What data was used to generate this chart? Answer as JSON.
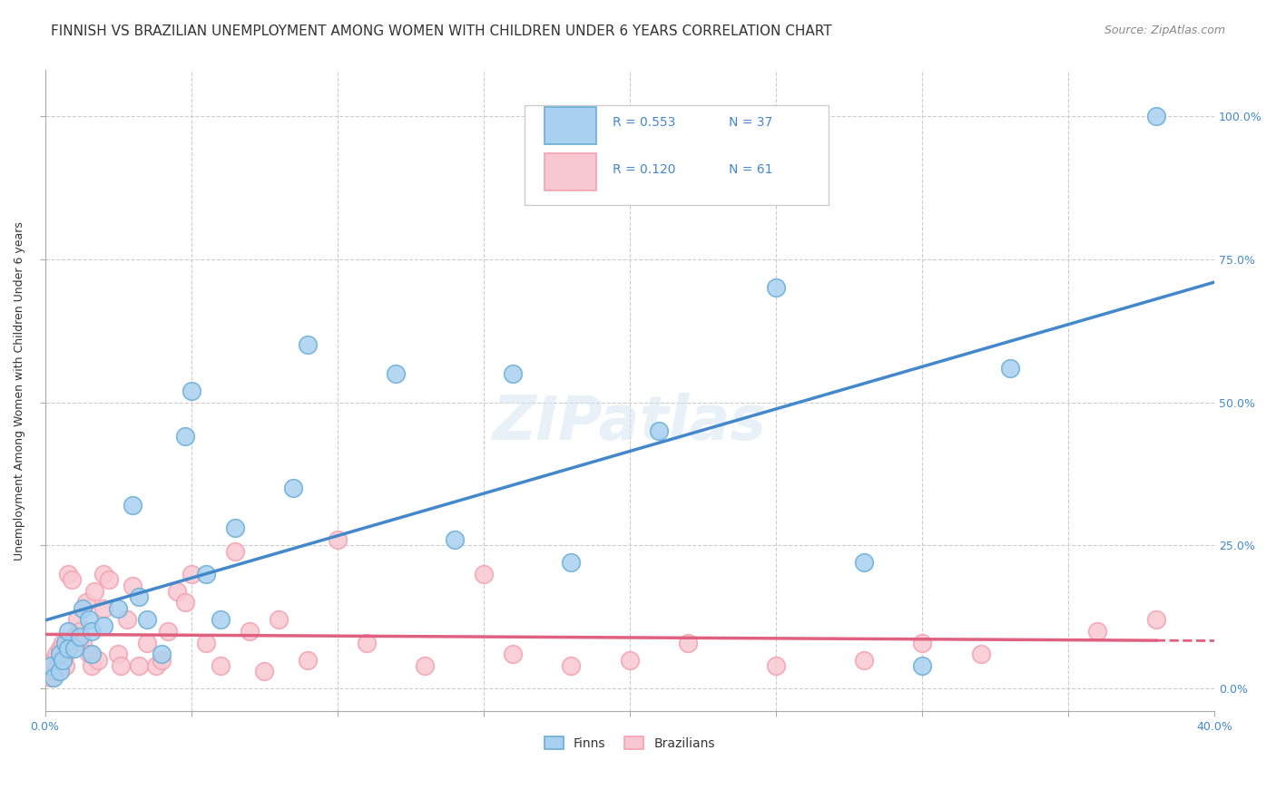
{
  "title": "FINNISH VS BRAZILIAN UNEMPLOYMENT AMONG WOMEN WITH CHILDREN UNDER 6 YEARS CORRELATION CHART",
  "source": "Source: ZipAtlas.com",
  "ylabel": "Unemployment Among Women with Children Under 6 years",
  "ytick_labels": [
    "0.0%",
    "25.0%",
    "50.0%",
    "75.0%",
    "100.0%"
  ],
  "ytick_values": [
    0,
    0.25,
    0.5,
    0.75,
    1.0
  ],
  "xlim": [
    0,
    0.4
  ],
  "ylim": [
    -0.04,
    1.08
  ],
  "legend_finn_R": "0.553",
  "legend_finn_N": "37",
  "legend_braz_R": "0.120",
  "legend_braz_N": "61",
  "finn_color": "#6baed6",
  "finn_color_fill": "#a8d1f0",
  "braz_color": "#f4a0b0",
  "braz_color_fill": "#f8c8d2",
  "line_finn_color": "#4488cc",
  "line_braz_color": "#e06080",
  "background_color": "#ffffff",
  "grid_color": "#cccccc",
  "title_fontsize": 11,
  "source_fontsize": 9,
  "label_fontsize": 9,
  "finn_x": [
    0.002,
    0.003,
    0.005,
    0.005,
    0.006,
    0.007,
    0.008,
    0.008,
    0.01,
    0.012,
    0.013,
    0.015,
    0.016,
    0.016,
    0.02,
    0.025,
    0.03,
    0.032,
    0.035,
    0.04,
    0.048,
    0.05,
    0.055,
    0.06,
    0.065,
    0.085,
    0.09,
    0.12,
    0.14,
    0.16,
    0.18,
    0.21,
    0.25,
    0.28,
    0.3,
    0.33,
    0.38
  ],
  "finn_y": [
    0.04,
    0.02,
    0.06,
    0.03,
    0.05,
    0.08,
    0.1,
    0.07,
    0.07,
    0.09,
    0.14,
    0.12,
    0.1,
    0.06,
    0.11,
    0.14,
    0.32,
    0.16,
    0.12,
    0.06,
    0.44,
    0.52,
    0.2,
    0.12,
    0.28,
    0.35,
    0.6,
    0.55,
    0.26,
    0.55,
    0.22,
    0.45,
    0.7,
    0.22,
    0.04,
    0.56,
    1.0
  ],
  "braz_x": [
    0.001,
    0.002,
    0.003,
    0.003,
    0.004,
    0.004,
    0.005,
    0.005,
    0.006,
    0.006,
    0.007,
    0.007,
    0.008,
    0.008,
    0.009,
    0.01,
    0.01,
    0.011,
    0.012,
    0.013,
    0.014,
    0.015,
    0.016,
    0.017,
    0.018,
    0.02,
    0.02,
    0.022,
    0.025,
    0.026,
    0.028,
    0.03,
    0.032,
    0.035,
    0.038,
    0.04,
    0.042,
    0.045,
    0.048,
    0.05,
    0.055,
    0.06,
    0.065,
    0.07,
    0.075,
    0.08,
    0.09,
    0.1,
    0.11,
    0.13,
    0.15,
    0.16,
    0.18,
    0.2,
    0.22,
    0.25,
    0.28,
    0.3,
    0.32,
    0.36,
    0.38
  ],
  "braz_y": [
    0.04,
    0.02,
    0.05,
    0.03,
    0.06,
    0.03,
    0.07,
    0.04,
    0.08,
    0.05,
    0.06,
    0.04,
    0.2,
    0.07,
    0.19,
    0.09,
    0.08,
    0.12,
    0.1,
    0.08,
    0.15,
    0.06,
    0.04,
    0.17,
    0.05,
    0.2,
    0.14,
    0.19,
    0.06,
    0.04,
    0.12,
    0.18,
    0.04,
    0.08,
    0.04,
    0.05,
    0.1,
    0.17,
    0.15,
    0.2,
    0.08,
    0.04,
    0.24,
    0.1,
    0.03,
    0.12,
    0.05,
    0.26,
    0.08,
    0.04,
    0.2,
    0.06,
    0.04,
    0.05,
    0.08,
    0.04,
    0.05,
    0.08,
    0.06,
    0.1,
    0.12
  ],
  "watermark": "ZIPatlas",
  "xtick_positions": [
    0.0,
    0.05,
    0.1,
    0.15,
    0.2,
    0.25,
    0.3,
    0.35,
    0.4
  ]
}
